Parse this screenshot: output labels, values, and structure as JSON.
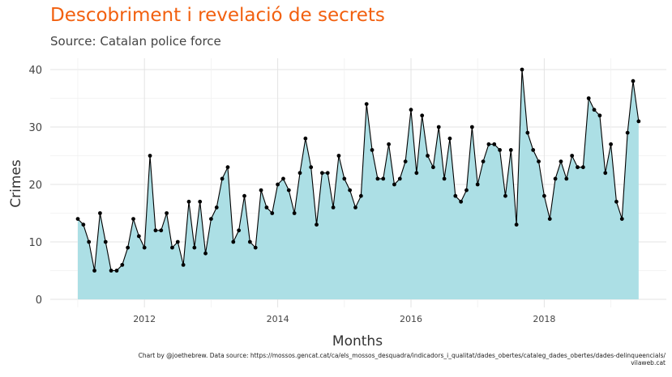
{
  "chart_data": {
    "type": "area",
    "title": "Descobriment i revelació de secrets",
    "subtitle": "Source: Catalan police force",
    "xlabel": "Months",
    "ylabel": "Crimes",
    "x_start": "2011-01",
    "x_ticks": [
      "2012",
      "2014",
      "2016",
      "2018"
    ],
    "y_ticks": [
      0,
      10,
      20,
      30,
      40
    ],
    "ylim": [
      0,
      42
    ],
    "grid": true,
    "fill_color": "#acdfe5",
    "line_color": "#000000",
    "point_color": "#000000",
    "title_color": "#f2600f",
    "series": [
      {
        "values": [
          14,
          13,
          10,
          5,
          15,
          10,
          5,
          5,
          6,
          9,
          14,
          11,
          9,
          25,
          12,
          12,
          15,
          9,
          10,
          6,
          17,
          9,
          17,
          8,
          14,
          16,
          21,
          23,
          10,
          12,
          18,
          10,
          9,
          19,
          16,
          15,
          20,
          21,
          19,
          15,
          22,
          28,
          23,
          13,
          22,
          22,
          16,
          25,
          21,
          19,
          16,
          18,
          34,
          26,
          21,
          21,
          27,
          20,
          21,
          24,
          33,
          22,
          32,
          25,
          23,
          30,
          21,
          28,
          18,
          17,
          19,
          30,
          20,
          24,
          27,
          27,
          26,
          18,
          26,
          13,
          40,
          29,
          26,
          24,
          18,
          14,
          21,
          24,
          21,
          25,
          23,
          23,
          35,
          33,
          32,
          22,
          27,
          17,
          14,
          29,
          38,
          31
        ]
      }
    ]
  },
  "caption": {
    "line1": "Chart by @joethebrew. Data source: https://mossos.gencat.cat/ca/els_mossos_desquadra/indicadors_i_qualitat/dades_obertes/cataleg_dades_obertes/dades-delinqueencials/",
    "line2": "vilaweb.cat"
  }
}
